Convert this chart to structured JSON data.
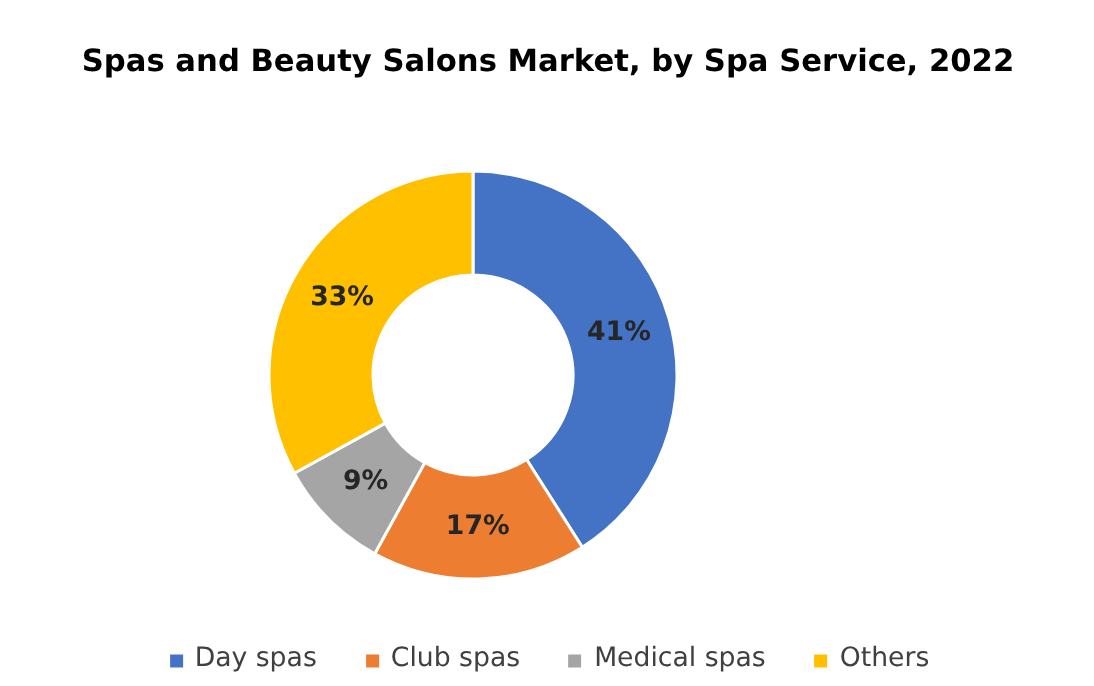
{
  "chart_data": {
    "type": "donut",
    "title": "Spas and Beauty Salons Market, by Spa Service, 2022",
    "categories": [
      "Day spas",
      "Club spas",
      "Medical spas",
      "Others"
    ],
    "values": [
      41,
      17,
      9,
      33
    ],
    "colors": [
      "#4472c4",
      "#ed7d31",
      "#a5a5a5",
      "#ffc000"
    ],
    "value_labels": [
      "41%",
      "17%",
      "9%",
      "33%"
    ],
    "legend": "bottom"
  }
}
